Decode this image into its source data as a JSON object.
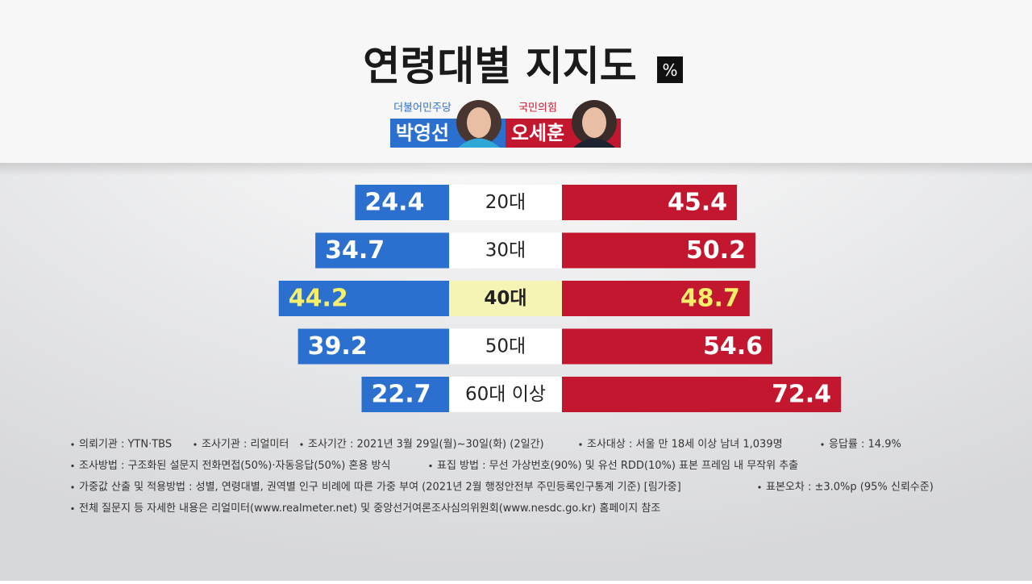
{
  "chart_data": {
    "type": "butterfly-bar",
    "title": "연령대별 지지도",
    "unit": "%",
    "categories": [
      "20대",
      "30대",
      "40대",
      "50대",
      "60대 이상"
    ],
    "highlight": 2,
    "highlight_color": "#f6f4b4",
    "highlight_text_color": "#f5ef6a",
    "series": [
      {
        "name": "박영선",
        "party": "더불어민주당",
        "color": "#2b6fcf",
        "values": [
          24.4,
          34.7,
          44.2,
          39.2,
          22.7
        ]
      },
      {
        "name": "오세훈",
        "party": "국민의힘",
        "color": "#c3172f",
        "values": [
          45.4,
          50.2,
          48.7,
          54.6,
          72.4
        ]
      }
    ]
  },
  "notes": [
    [
      "의뢰기관 : YTN·TBS",
      "조사기관 : 리얼미터",
      "조사기간 : 2021년 3월 29일(월)~30일(화) (2일간)",
      "조사대상 : 서울 만 18세 이상 남녀 1,039명",
      "응답률 : 14.9%"
    ],
    [
      "조사방법 : 구조화된 설문지 전화면접(50%)·자동응답(50%) 혼용 방식",
      "표집 방법 : 무선 가상번호(90%) 및 유선 RDD(10%) 표본 프레임 내 무작위 추출"
    ],
    [
      "가중값 산출 및 적용방법 : 성별, 연령대별, 권역별 인구 비례에 따른 가중 부여 (2021년 2월 행정안전부 주민등록인구통계 기준) [림가중]",
      "표본오차 : ±3.0%p (95% 신뢰수준)"
    ],
    [
      "전체 질문지 등 자세한 내용은 리얼미터(www.realmeter.net) 및 중앙선거여론조사심의위원회(www.nesdc.go.kr) 홈페이지 참조"
    ]
  ]
}
